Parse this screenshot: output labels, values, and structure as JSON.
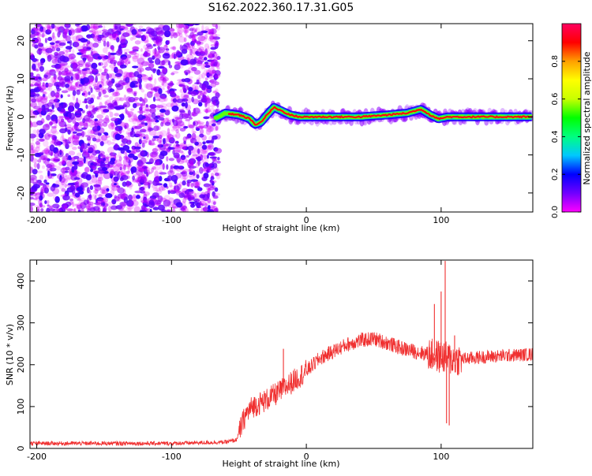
{
  "title": "S162.2022.360.17.31.G05",
  "chart_data": [
    {
      "type": "heatmap",
      "xlabel": "Height of straight line (km)",
      "ylabel": "Frequency (Hz)",
      "xlim": [
        -205,
        168
      ],
      "ylim": [
        -25,
        24.5
      ],
      "x_ticks": [
        -200,
        -100,
        0,
        100
      ],
      "y_ticks": [
        -20,
        -10,
        0,
        10,
        20
      ],
      "colorbar": {
        "label": "Normalized spectral amplitude",
        "range": [
          0,
          1
        ],
        "ticks": [
          0.0,
          0.2,
          0.4,
          0.6,
          0.8
        ],
        "tick_labels": [
          "0.0",
          "0.2",
          "0.4",
          "0.6",
          "0.8"
        ],
        "colormap": [
          "#ff00ff",
          "#7000ff",
          "#0000ff",
          "#00c8ff",
          "#00ff80",
          "#00ff00",
          "#c8ff00",
          "#ffff00",
          "#ffa000",
          "#ff0000",
          "#ff0060"
        ]
      },
      "noise_region": {
        "x_range": [
          -205,
          -65
        ],
        "freq_range": [
          -25,
          24.5
        ],
        "amplitude_range": [
          0.02,
          0.15
        ]
      },
      "signal_center_track": [
        {
          "x": -68,
          "f": -0.5
        },
        {
          "x": -60,
          "f": 1.0
        },
        {
          "x": -50,
          "f": 0.5
        },
        {
          "x": -42,
          "f": -0.5
        },
        {
          "x": -38,
          "f": -2.0
        },
        {
          "x": -34,
          "f": -1.5
        },
        {
          "x": -28,
          "f": 1.0
        },
        {
          "x": -24,
          "f": 2.5
        },
        {
          "x": -18,
          "f": 1.5
        },
        {
          "x": -12,
          "f": 0.5
        },
        {
          "x": -5,
          "f": 0.0
        },
        {
          "x": 0,
          "f": 0.0
        },
        {
          "x": 40,
          "f": 0.0
        },
        {
          "x": 60,
          "f": 0.5
        },
        {
          "x": 75,
          "f": 1.0
        },
        {
          "x": 85,
          "f": 2.0
        },
        {
          "x": 92,
          "f": 0.5
        },
        {
          "x": 98,
          "f": -0.5
        },
        {
          "x": 105,
          "f": 0.0
        },
        {
          "x": 130,
          "f": 0.0
        },
        {
          "x": 168,
          "f": 0.0
        }
      ]
    },
    {
      "type": "line",
      "xlabel": "Height of straight line (km)",
      "ylabel": "SNR (10 * v/v)",
      "xlim": [
        -205,
        168
      ],
      "ylim": [
        0,
        450
      ],
      "x_ticks": [
        -200,
        -100,
        0,
        100
      ],
      "y_ticks": [
        0,
        100,
        200,
        300,
        400
      ],
      "line_color": "#f03030",
      "trend": [
        {
          "x": -205,
          "snr": 12
        },
        {
          "x": -100,
          "snr": 12
        },
        {
          "x": -60,
          "snr": 15
        },
        {
          "x": -52,
          "snr": 20
        },
        {
          "x": -48,
          "snr": 55
        },
        {
          "x": -45,
          "snr": 80
        },
        {
          "x": -40,
          "snr": 100
        },
        {
          "x": -30,
          "snr": 115
        },
        {
          "x": -20,
          "snr": 135
        },
        {
          "x": -10,
          "snr": 160
        },
        {
          "x": 0,
          "snr": 185
        },
        {
          "x": 10,
          "snr": 215
        },
        {
          "x": 20,
          "snr": 232
        },
        {
          "x": 30,
          "snr": 248
        },
        {
          "x": 40,
          "snr": 258
        },
        {
          "x": 50,
          "snr": 262
        },
        {
          "x": 60,
          "snr": 252
        },
        {
          "x": 70,
          "snr": 240
        },
        {
          "x": 80,
          "snr": 232
        },
        {
          "x": 90,
          "snr": 225
        },
        {
          "x": 110,
          "snr": 212
        },
        {
          "x": 130,
          "snr": 218
        },
        {
          "x": 150,
          "snr": 222
        },
        {
          "x": 168,
          "snr": 225
        }
      ],
      "spikes": [
        {
          "x": -17,
          "snr": 238
        },
        {
          "x": 95,
          "snr": 345
        },
        {
          "x": 100,
          "snr": 375
        },
        {
          "x": 103,
          "snr": 448
        },
        {
          "x": 104,
          "snr": 60
        },
        {
          "x": 106,
          "snr": 55
        },
        {
          "x": 110,
          "snr": 270
        }
      ]
    }
  ]
}
